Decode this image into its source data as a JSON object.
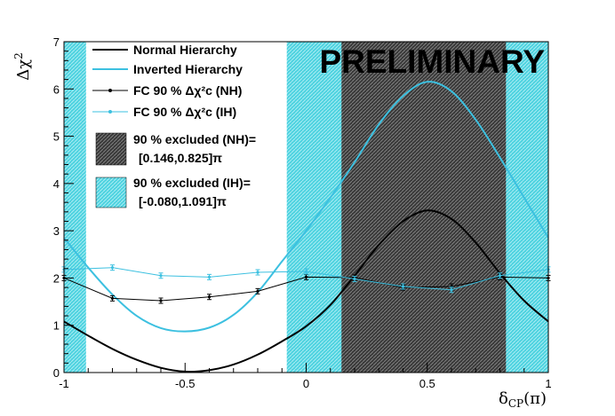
{
  "chart_data": {
    "type": "line",
    "title": "",
    "watermark": "PRELIMINARY",
    "xlabel": "δ_CP(π)",
    "ylabel": "Δχ²",
    "xlim": [
      -1,
      1
    ],
    "ylim": [
      0,
      7
    ],
    "x_ticks": [
      -1,
      -0.5,
      0,
      0.5,
      1
    ],
    "x_tick_labels": [
      "-1",
      "-0.5",
      "0",
      "0.5",
      "1"
    ],
    "y_ticks": [
      0,
      1,
      2,
      3,
      4,
      5,
      6,
      7
    ],
    "y_tick_labels": [
      "0",
      "1",
      "2",
      "3",
      "4",
      "5",
      "6",
      "7"
    ],
    "excluded_regions": [
      {
        "name": "90 % excluded (NH)",
        "range_label": "[0.146,0.825]π",
        "ranges": [
          [
            0.146,
            0.825
          ]
        ],
        "style": "dark-hatched",
        "color": "#3a3a3a"
      },
      {
        "name": "90 % excluded (IH)",
        "range_label": "[-0.080,1.091]π",
        "ranges": [
          [
            -0.08,
            1.0
          ],
          [
            -1.0,
            -0.909
          ]
        ],
        "style": "cyan-hatched",
        "color": "#4fd3e0"
      }
    ],
    "series": [
      {
        "name": "Normal Hierarchy",
        "kind": "curve",
        "color": "#000000",
        "x": [
          -1,
          -0.9,
          -0.8,
          -0.7,
          -0.6,
          -0.5,
          -0.4,
          -0.3,
          -0.2,
          -0.1,
          0,
          0.1,
          0.2,
          0.3,
          0.4,
          0.5,
          0.6,
          0.7,
          0.8,
          0.9,
          1
        ],
        "y": [
          1.08,
          0.78,
          0.5,
          0.27,
          0.1,
          0.02,
          0.05,
          0.17,
          0.38,
          0.66,
          0.98,
          1.43,
          2.05,
          2.7,
          3.2,
          3.43,
          3.25,
          2.75,
          2.1,
          1.52,
          1.08
        ]
      },
      {
        "name": "Inverted Hierarchy",
        "kind": "curve",
        "color": "#3cc0e0",
        "x": [
          -1,
          -0.9,
          -0.8,
          -0.7,
          -0.6,
          -0.5,
          -0.4,
          -0.3,
          -0.2,
          -0.1,
          0,
          0.1,
          0.2,
          0.3,
          0.4,
          0.5,
          0.6,
          0.7,
          0.8,
          0.9,
          1
        ],
        "y": [
          2.85,
          2.22,
          1.65,
          1.2,
          0.94,
          0.87,
          0.95,
          1.22,
          1.7,
          2.35,
          3.0,
          3.7,
          4.45,
          5.25,
          5.85,
          6.15,
          5.95,
          5.35,
          4.55,
          3.7,
          2.85
        ]
      },
      {
        "name": "FC 90 % Δχ²c (NH)",
        "kind": "points",
        "color": "#000000",
        "x": [
          -1,
          -0.8,
          -0.6,
          -0.4,
          -0.2,
          0,
          0.2,
          0.4,
          0.6,
          0.8,
          1
        ],
        "y": [
          2.0,
          1.57,
          1.52,
          1.6,
          1.72,
          2.02,
          2.01,
          1.8,
          1.82,
          2.02,
          2.0
        ]
      },
      {
        "name": "FC 90 % Δχ²c (IH)",
        "kind": "points",
        "color": "#3cc0e0",
        "x": [
          -1,
          -0.8,
          -0.6,
          -0.4,
          -0.2,
          0,
          0.2,
          0.4,
          0.6,
          0.8,
          1
        ],
        "y": [
          2.18,
          2.22,
          2.05,
          2.02,
          2.12,
          2.14,
          1.98,
          1.82,
          1.75,
          2.05,
          2.18
        ]
      }
    ],
    "legend": {
      "placement": "top-left",
      "entries": [
        {
          "label": "Normal Hierarchy"
        },
        {
          "label": "Inverted Hierarchy"
        },
        {
          "label": "FC 90 % Δχ²c (NH)"
        },
        {
          "label": "FC 90 % Δχ²c (IH)"
        },
        {
          "label": "90 % excluded (NH)=",
          "label2": "[0.146,0.825]π"
        },
        {
          "label": "90 % excluded (IH)=",
          "label2": "[-0.080,1.091]π"
        }
      ]
    }
  },
  "colors": {
    "nh": "#000000",
    "ih": "#3cc0e0",
    "nh_band": "#3a3a3a",
    "ih_band": "#4fd3e0"
  }
}
